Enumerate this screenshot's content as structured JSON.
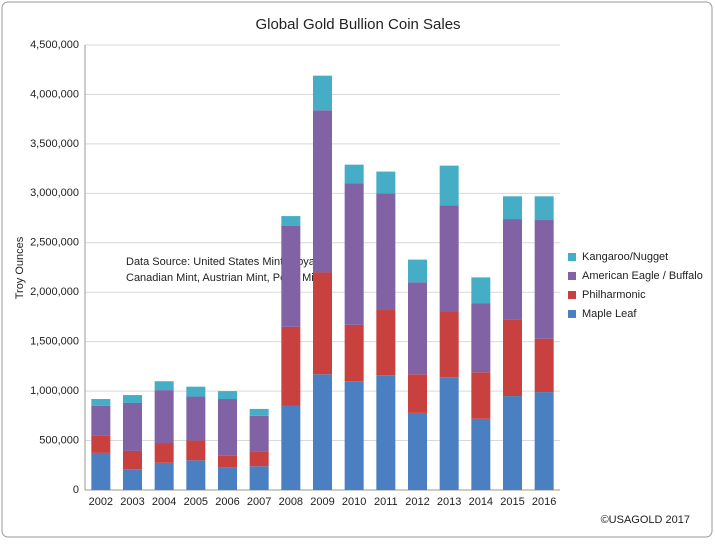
{
  "chart_data": {
    "type": "stacked-bar",
    "title": "Global Gold Bullion Coin Sales",
    "y_label": "Troy Ounces",
    "annotation": [
      "Data Source: United States Mint, Royal",
      "Canadian Mint, Austrian Mint, Perth Mint"
    ],
    "credit": "©USAGOLD 2017",
    "categories": [
      "2002",
      "2003",
      "2004",
      "2005",
      "2006",
      "2007",
      "2008",
      "2009",
      "2010",
      "2011",
      "2012",
      "2013",
      "2014",
      "2015",
      "2016"
    ],
    "series": [
      {
        "name": "Maple Leaf",
        "color": "#4a7fc1",
        "values": [
          375000,
          210000,
          275000,
          300000,
          225000,
          240000,
          850000,
          1170000,
          1100000,
          1160000,
          780000,
          1140000,
          720000,
          950000,
          990000
        ]
      },
      {
        "name": "Philharmonic",
        "color": "#c9413f",
        "values": [
          175000,
          185000,
          200000,
          200000,
          120000,
          145000,
          800000,
          1030000,
          570000,
          660000,
          390000,
          660000,
          470000,
          770000,
          540000
        ]
      },
      {
        "name": "American Eagle / Buffalo",
        "color": "#8062a5",
        "values": [
          300000,
          485000,
          535000,
          445000,
          575000,
          365000,
          1020000,
          1640000,
          1430000,
          1180000,
          930000,
          1080000,
          700000,
          1020000,
          1200000
        ]
      },
      {
        "name": "Kangaroo/Nugget",
        "color": "#45aec6",
        "values": [
          70000,
          80000,
          90000,
          100000,
          80000,
          70000,
          100000,
          350000,
          190000,
          220000,
          230000,
          400000,
          260000,
          230000,
          240000
        ]
      }
    ],
    "ylim": [
      0,
      4500000
    ],
    "yticks": [
      0,
      {
        "value": 500000,
        "label": "500,000"
      },
      {
        "value": 1000000,
        "label": "1,000,000"
      },
      {
        "value": 1500000,
        "label": "1,500,000"
      },
      {
        "value": 2000000,
        "label": "2,000,000"
      },
      {
        "value": 2500000,
        "label": "2,500,000"
      },
      {
        "value": 3000000,
        "label": "3,000,000"
      },
      {
        "value": 3500000,
        "label": "3,500,000"
      },
      {
        "value": 4000000,
        "label": "4,000,000"
      },
      {
        "value": 4500000,
        "label": "4,500,000"
      }
    ],
    "grid": true,
    "legend": "right"
  }
}
